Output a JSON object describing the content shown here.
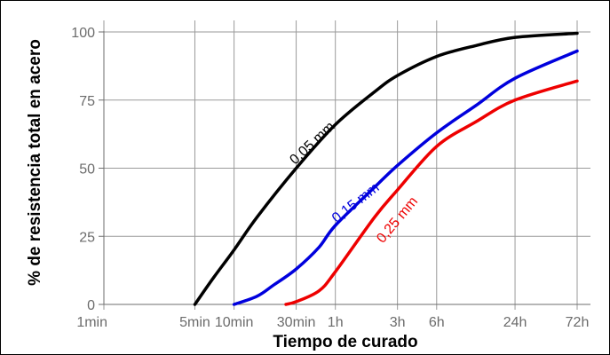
{
  "chart_data": {
    "type": "line",
    "title": "",
    "xlabel": "Tiempo de curado",
    "ylabel": "% de resistencia total en acero",
    "x_scale": "log",
    "x_ticks": [
      {
        "label": "1min",
        "minutes": 1
      },
      {
        "label": "5min",
        "minutes": 5
      },
      {
        "label": "10min",
        "minutes": 10
      },
      {
        "label": "30min",
        "minutes": 30
      },
      {
        "label": "1h",
        "minutes": 60
      },
      {
        "label": "3h",
        "minutes": 180
      },
      {
        "label": "6h",
        "minutes": 360
      },
      {
        "label": "24h",
        "minutes": 1440
      },
      {
        "label": "72h",
        "minutes": 4320
      }
    ],
    "x_unit": "minutes",
    "ylim": [
      0,
      100
    ],
    "y_ticks": [
      0,
      25,
      50,
      75,
      100
    ],
    "grid": true,
    "series": [
      {
        "name": "0,05 mm",
        "color": "#000000",
        "points": [
          {
            "x": 5,
            "y": 0
          },
          {
            "x": 7,
            "y": 10
          },
          {
            "x": 10,
            "y": 20
          },
          {
            "x": 15,
            "y": 32
          },
          {
            "x": 30,
            "y": 50
          },
          {
            "x": 60,
            "y": 66
          },
          {
            "x": 120,
            "y": 78
          },
          {
            "x": 180,
            "y": 84
          },
          {
            "x": 360,
            "y": 91
          },
          {
            "x": 720,
            "y": 95
          },
          {
            "x": 1440,
            "y": 98
          },
          {
            "x": 4320,
            "y": 99.5
          }
        ]
      },
      {
        "name": "0,15 mm",
        "color": "#0000dd",
        "points": [
          {
            "x": 10,
            "y": 0
          },
          {
            "x": 15,
            "y": 3
          },
          {
            "x": 20,
            "y": 7
          },
          {
            "x": 30,
            "y": 13
          },
          {
            "x": 45,
            "y": 21
          },
          {
            "x": 60,
            "y": 29
          },
          {
            "x": 120,
            "y": 43
          },
          {
            "x": 180,
            "y": 51
          },
          {
            "x": 360,
            "y": 63
          },
          {
            "x": 720,
            "y": 73
          },
          {
            "x": 1440,
            "y": 83
          },
          {
            "x": 4320,
            "y": 93
          }
        ]
      },
      {
        "name": "0,25 mm",
        "color": "#ee0000",
        "points": [
          {
            "x": 25,
            "y": 0
          },
          {
            "x": 30,
            "y": 1
          },
          {
            "x": 45,
            "y": 5
          },
          {
            "x": 60,
            "y": 12
          },
          {
            "x": 120,
            "y": 32
          },
          {
            "x": 180,
            "y": 42
          },
          {
            "x": 360,
            "y": 58
          },
          {
            "x": 720,
            "y": 67
          },
          {
            "x": 1440,
            "y": 75
          },
          {
            "x": 4320,
            "y": 82
          }
        ]
      }
    ]
  }
}
